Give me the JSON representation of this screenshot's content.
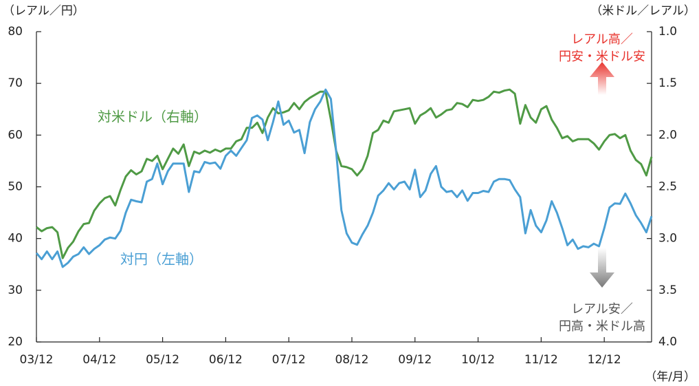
{
  "chart_data": {
    "type": "line",
    "y_label": "（レアル／円）",
    "y2_label": "（米ドル／レアル）",
    "x_label": "（年/月）",
    "categories": [
      "03/12",
      null,
      null,
      null,
      null,
      null,
      null,
      null,
      null,
      null,
      null,
      null,
      "04/12",
      null,
      null,
      null,
      null,
      null,
      null,
      null,
      null,
      null,
      null,
      null,
      "05/12",
      null,
      null,
      null,
      null,
      null,
      null,
      null,
      null,
      null,
      null,
      null,
      "06/12",
      null,
      null,
      null,
      null,
      null,
      null,
      null,
      null,
      null,
      null,
      null,
      "07/12",
      null,
      null,
      null,
      null,
      null,
      null,
      null,
      null,
      null,
      null,
      null,
      "08/12",
      null,
      null,
      null,
      null,
      null,
      null,
      null,
      null,
      null,
      null,
      null,
      "09/12",
      null,
      null,
      null,
      null,
      null,
      null,
      null,
      null,
      null,
      null,
      null,
      "10/12",
      null,
      null,
      null,
      null,
      null,
      null,
      null,
      null,
      null,
      null,
      null,
      "11/12",
      null,
      null,
      null,
      null,
      null,
      null,
      null,
      null,
      null,
      null,
      null,
      "12/12",
      null,
      null,
      null,
      null,
      null,
      null,
      null,
      null,
      null
    ],
    "series": [
      {
        "name": "対米ドル（右軸）",
        "color": "#4f9a45",
        "axis": "y2",
        "values": [
          2.89,
          2.93,
          2.9,
          2.89,
          2.94,
          3.19,
          3.09,
          3.03,
          2.93,
          2.86,
          2.85,
          2.73,
          2.66,
          2.61,
          2.59,
          2.68,
          2.53,
          2.4,
          2.34,
          2.38,
          2.35,
          2.23,
          2.25,
          2.2,
          2.33,
          2.23,
          2.13,
          2.18,
          2.09,
          2.3,
          2.16,
          2.18,
          2.15,
          2.17,
          2.14,
          2.16,
          2.13,
          2.13,
          2.06,
          2.04,
          1.93,
          1.93,
          1.88,
          1.98,
          1.83,
          1.74,
          1.79,
          1.78,
          1.76,
          1.69,
          1.75,
          1.68,
          1.64,
          1.61,
          1.58,
          1.58,
          1.85,
          2.15,
          2.3,
          2.31,
          2.33,
          2.39,
          2.33,
          2.2,
          1.98,
          1.95,
          1.86,
          1.88,
          1.77,
          1.76,
          1.75,
          1.74,
          1.89,
          1.81,
          1.78,
          1.74,
          1.83,
          1.8,
          1.76,
          1.75,
          1.69,
          1.7,
          1.73,
          1.66,
          1.67,
          1.66,
          1.63,
          1.58,
          1.59,
          1.57,
          1.56,
          1.6,
          1.89,
          1.71,
          1.83,
          1.88,
          1.75,
          1.72,
          1.85,
          1.93,
          2.03,
          2.01,
          2.06,
          2.04,
          2.04,
          2.04,
          2.08,
          2.14,
          2.06,
          2.0,
          1.99,
          2.03,
          2.0,
          2.15,
          2.24,
          2.28,
          2.39,
          2.21
        ]
      },
      {
        "name": "対円（左軸）",
        "color": "#4a9fd4",
        "axis": "y",
        "values": [
          37.2,
          36,
          37.5,
          36,
          37.5,
          34.5,
          35.3,
          36.5,
          37,
          38.3,
          37,
          38,
          38.7,
          39.8,
          40.2,
          40,
          41.5,
          45,
          47.5,
          47.2,
          47,
          51,
          51.5,
          54.5,
          50.5,
          53,
          54.5,
          54.5,
          54.5,
          49,
          53,
          52.8,
          54.8,
          54.5,
          54.7,
          53.5,
          56,
          57,
          56,
          57.5,
          59,
          63.3,
          63.8,
          63,
          59,
          62.5,
          66.5,
          62,
          62.8,
          60.5,
          61,
          56.5,
          62.5,
          65,
          66.5,
          68.8,
          67,
          57,
          45.5,
          41,
          39.2,
          38.8,
          40.8,
          42.5,
          45,
          48.3,
          49.3,
          50.7,
          49.5,
          50.7,
          51,
          49.5,
          53.3,
          48,
          49.3,
          52.5,
          54,
          50,
          49,
          49.2,
          48,
          49.3,
          47.3,
          48.8,
          48.8,
          49.2,
          49,
          51,
          51.5,
          51.5,
          51.3,
          49.5,
          48,
          41,
          45.5,
          42.5,
          41.2,
          43.5,
          47.2,
          45,
          42,
          38.7,
          39.8,
          38,
          38.5,
          38.3,
          39,
          38.5,
          42,
          46,
          46.8,
          46.7,
          48.7,
          46.8,
          44.5,
          43,
          41.2,
          44.3
        ]
      }
    ],
    "ylim": [
      20,
      80
    ],
    "yticks": [
      20,
      30,
      40,
      50,
      60,
      70,
      80
    ],
    "y2lim": [
      4.0,
      1.0
    ],
    "y2ticks": [
      {
        "value": 4.0,
        "label": "4.0"
      },
      {
        "value": 3.5,
        "label": "3.5"
      },
      {
        "value": 3.0,
        "label": "3.0"
      },
      {
        "value": 2.5,
        "label": "2.5"
      },
      {
        "value": 2.0,
        "label": "2.0"
      },
      {
        "value": 1.5,
        "label": "1.5"
      },
      {
        "value": 1.0,
        "label": "1.0"
      }
    ],
    "annotations": [
      {
        "lines": [
          "レアル高／",
          "円安・米ドル安"
        ],
        "color": "#e8342e"
      },
      {
        "lines": [
          "レアル安／",
          "円高・米ドル高"
        ],
        "color": "#555555"
      }
    ]
  }
}
